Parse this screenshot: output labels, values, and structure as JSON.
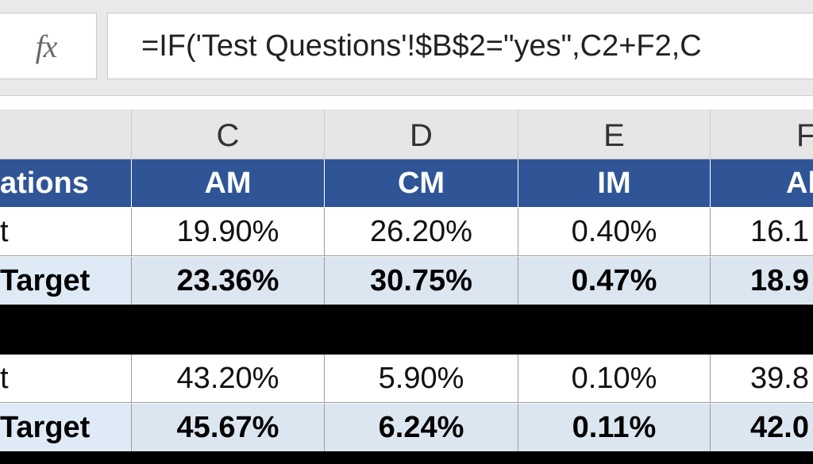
{
  "formula_bar": {
    "fx_label": "fx",
    "formula": "=IF('Test Questions'!$B$2=\"yes\",C2+F2,C"
  },
  "columns": [
    "C",
    "D",
    "E",
    "F"
  ],
  "header_row": {
    "label": "ations",
    "values": [
      "AM",
      "CM",
      "IM",
      "Al"
    ]
  },
  "block1": {
    "value_row": {
      "label": "t",
      "values": [
        "19.90%",
        "26.20%",
        "0.40%",
        "16.1"
      ]
    },
    "target_row": {
      "label": "Target",
      "values": [
        "23.36%",
        "30.75%",
        "0.47%",
        "18.9"
      ]
    }
  },
  "block2": {
    "value_row": {
      "label": "t",
      "values": [
        "43.20%",
        "5.90%",
        "0.10%",
        "39.8"
      ]
    },
    "target_row": {
      "label": "Target",
      "values": [
        "45.67%",
        "6.24%",
        "0.11%",
        "42.0"
      ]
    }
  },
  "colors": {
    "header_fill": "#2f5597",
    "target_fill": "#dce6f1",
    "separator": "#000000"
  }
}
